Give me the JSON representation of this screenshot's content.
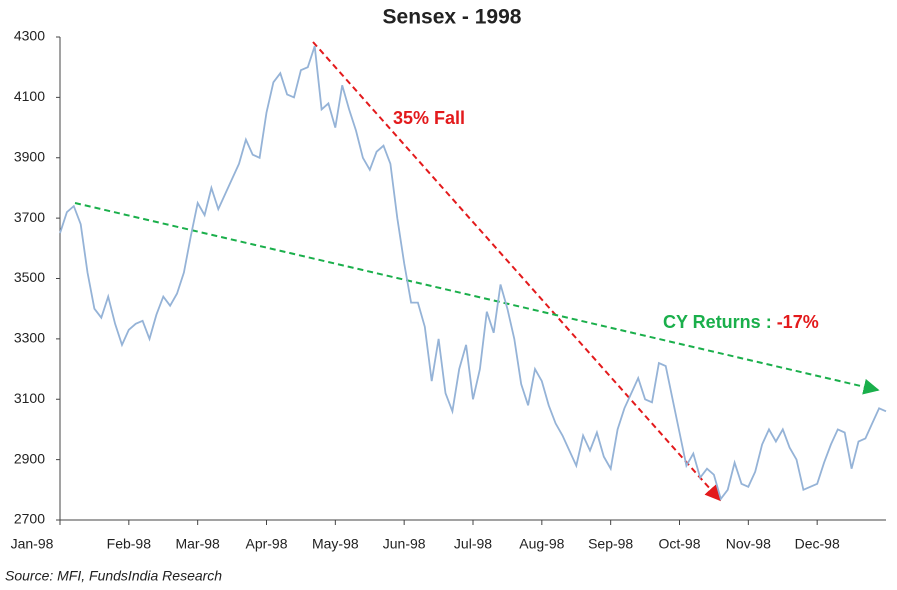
{
  "chart_data": {
    "type": "line",
    "title": "Sensex - 1998",
    "categories": [
      "Jan-98",
      null,
      null,
      null,
      null,
      null,
      null,
      null,
      null,
      null,
      "Feb-98",
      null,
      null,
      null,
      null,
      null,
      null,
      null,
      null,
      null,
      "Mar-98",
      null,
      null,
      null,
      null,
      null,
      null,
      null,
      null,
      null,
      "Apr-98",
      null,
      null,
      null,
      null,
      null,
      null,
      null,
      null,
      null,
      "May-98",
      null,
      null,
      null,
      null,
      null,
      null,
      null,
      null,
      null,
      "Jun-98",
      null,
      null,
      null,
      null,
      null,
      null,
      null,
      null,
      null,
      "Jul-98",
      null,
      null,
      null,
      null,
      null,
      null,
      null,
      null,
      null,
      "Aug-98",
      null,
      null,
      null,
      null,
      null,
      null,
      null,
      null,
      null,
      "Sep-98",
      null,
      null,
      null,
      null,
      null,
      null,
      null,
      null,
      null,
      "Oct-98",
      null,
      null,
      null,
      null,
      null,
      null,
      null,
      null,
      null,
      "Nov-98",
      null,
      null,
      null,
      null,
      null,
      null,
      null,
      null,
      null,
      "Dec-98",
      null,
      null,
      null,
      null,
      null,
      null,
      null,
      null,
      null,
      null
    ],
    "series": [
      {
        "name": "Sensex",
        "color": "#95b3d7",
        "values": [
          3650,
          3720,
          3740,
          3680,
          3520,
          3400,
          3370,
          3440,
          3350,
          3280,
          3330,
          3350,
          3360,
          3300,
          3380,
          3440,
          3410,
          3450,
          3520,
          3640,
          3750,
          3710,
          3800,
          3730,
          3780,
          3830,
          3880,
          3960,
          3910,
          3900,
          4050,
          4150,
          4180,
          4110,
          4100,
          4190,
          4200,
          4270,
          4060,
          4080,
          4000,
          4140,
          4060,
          3990,
          3900,
          3860,
          3920,
          3940,
          3880,
          3700,
          3550,
          3420,
          3420,
          3340,
          3160,
          3300,
          3120,
          3060,
          3200,
          3280,
          3100,
          3200,
          3390,
          3320,
          3480,
          3400,
          3300,
          3150,
          3080,
          3200,
          3160,
          3080,
          3020,
          2980,
          2930,
          2880,
          2980,
          2930,
          2990,
          2910,
          2870,
          3000,
          3070,
          3120,
          3170,
          3100,
          3090,
          3220,
          3210,
          3100,
          2990,
          2880,
          2920,
          2840,
          2870,
          2850,
          2770,
          2800,
          2890,
          2820,
          2810,
          2860,
          2950,
          3000,
          2960,
          3000,
          2940,
          2900,
          2800,
          2810,
          2820,
          2890,
          2950,
          3000,
          2990,
          2870,
          2960,
          2970,
          3020,
          3070,
          3060
        ]
      }
    ],
    "ylim": [
      2700,
      4300
    ],
    "yticks": [
      2700,
      2900,
      3100,
      3300,
      3500,
      3700,
      3900,
      4100,
      4300
    ],
    "annotations": {
      "fall": "35% Fall",
      "returns": "CY Returns : ",
      "returns_value": "-17%"
    },
    "source": "Source: MFI, FundsIndia Research"
  }
}
